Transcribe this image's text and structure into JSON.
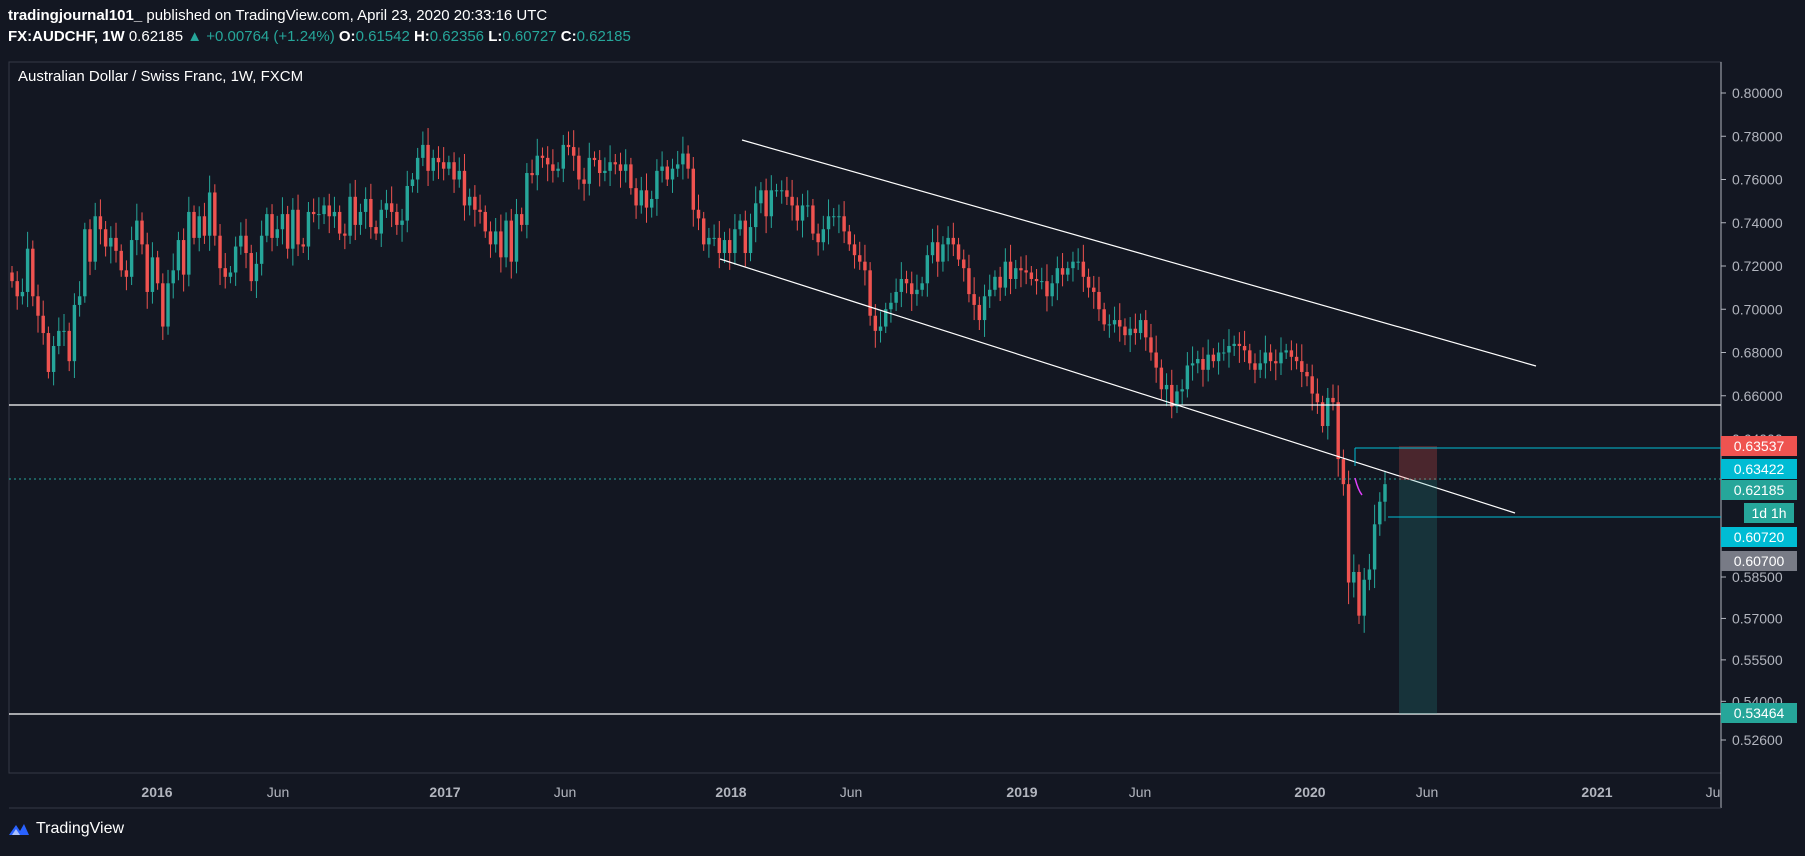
{
  "header": {
    "author": "tradingjournal101_",
    "published": "published on TradingView.com, April 23, 2020 20:33:16 UTC",
    "symbol": "FX:AUDCHF",
    "interval": "1W",
    "last": "0.62185",
    "change_arrow": "▲",
    "change": "+0.00764 (+1.24%)",
    "open_label": "O:",
    "open": "0.61542",
    "high_label": "H:",
    "high": "0.62356",
    "low_label": "L:",
    "low": "0.60727",
    "close_label": "C:",
    "close": "0.62185"
  },
  "footer": {
    "brand": "TradingView"
  },
  "colors": {
    "bg": "#131722",
    "up": "#26a69a",
    "down": "#ef5350",
    "grid_text": "#b2b5be",
    "accent_blue": "#00bcd4"
  },
  "chart_data": {
    "type": "candlestick",
    "title": "Australian Dollar / Swiss Franc, 1W, FXCM",
    "y_ticks": [
      "0.80000",
      "0.78000",
      "0.76000",
      "0.74000",
      "0.72000",
      "0.70000",
      "0.68000",
      "0.66000",
      "0.64000",
      "0.58500",
      "0.57000",
      "0.55500",
      "0.54000",
      "0.52600"
    ],
    "x_ticks": [
      "2016",
      "Jun",
      "2017",
      "Jun",
      "2018",
      "Jun",
      "2019",
      "Jun",
      "2020",
      "Jun",
      "2021",
      "Ju"
    ],
    "price_labels": [
      {
        "value": "0.63537",
        "color": "#ef5350"
      },
      {
        "value": "0.63422",
        "color": "#00bcd4"
      },
      {
        "value": "0.62185",
        "color": "#26a69a"
      },
      {
        "value": "1d 1h",
        "color": "#26a69a"
      },
      {
        "value": "0.60720",
        "color": "#00bcd4"
      },
      {
        "value": "0.60700",
        "color": "#787b86"
      },
      {
        "value": "0.53464",
        "color": "#26a69a"
      }
    ],
    "series": [
      {
        "name": "",
        "close": [
          0.713,
          0.706,
          0.708,
          0.728,
          0.706,
          0.697,
          0.689,
          0.671,
          0.683,
          0.69,
          0.69,
          0.676,
          0.702,
          0.706,
          0.737,
          0.722,
          0.743,
          0.737,
          0.729,
          0.733,
          0.727,
          0.718,
          0.715,
          0.732,
          0.741,
          0.73,
          0.708,
          0.724,
          0.712,
          0.692,
          0.712,
          0.718,
          0.732,
          0.716,
          0.745,
          0.733,
          0.743,
          0.734,
          0.754,
          0.734,
          0.719,
          0.715,
          0.717,
          0.729,
          0.734,
          0.726,
          0.713,
          0.721,
          0.734,
          0.744,
          0.733,
          0.737,
          0.744,
          0.728,
          0.746,
          0.73,
          0.729,
          0.745,
          0.744,
          0.744,
          0.748,
          0.743,
          0.745,
          0.735,
          0.734,
          0.752,
          0.739,
          0.745,
          0.751,
          0.738,
          0.735,
          0.746,
          0.749,
          0.745,
          0.739,
          0.741,
          0.757,
          0.76,
          0.77,
          0.776,
          0.764,
          0.77,
          0.768,
          0.765,
          0.768,
          0.76,
          0.764,
          0.748,
          0.752,
          0.746,
          0.745,
          0.736,
          0.73,
          0.736,
          0.724,
          0.741,
          0.722,
          0.744,
          0.739,
          0.763,
          0.762,
          0.771,
          0.77,
          0.767,
          0.764,
          0.765,
          0.776,
          0.775,
          0.771,
          0.76,
          0.758,
          0.77,
          0.769,
          0.763,
          0.764,
          0.768,
          0.767,
          0.764,
          0.767,
          0.756,
          0.748,
          0.755,
          0.747,
          0.751,
          0.764,
          0.766,
          0.76,
          0.765,
          0.767,
          0.772,
          0.765,
          0.746,
          0.742,
          0.73,
          0.733,
          0.733,
          0.726,
          0.732,
          0.726,
          0.737,
          0.741,
          0.726,
          0.738,
          0.749,
          0.755,
          0.743,
          0.755,
          0.755,
          0.755,
          0.752,
          0.748,
          0.741,
          0.748,
          0.748,
          0.735,
          0.731,
          0.737,
          0.743,
          0.743,
          0.743,
          0.736,
          0.73,
          0.725,
          0.722,
          0.718,
          0.697,
          0.69,
          0.692,
          0.7,
          0.703,
          0.708,
          0.714,
          0.712,
          0.707,
          0.709,
          0.712,
          0.725,
          0.731,
          0.722,
          0.73,
          0.733,
          0.73,
          0.723,
          0.719,
          0.707,
          0.702,
          0.695,
          0.706,
          0.709,
          0.715,
          0.71,
          0.722,
          0.714,
          0.719,
          0.718,
          0.717,
          0.714,
          0.713,
          0.713,
          0.706,
          0.712,
          0.719,
          0.716,
          0.719,
          0.722,
          0.722,
          0.715,
          0.71,
          0.708,
          0.7,
          0.693,
          0.693,
          0.695,
          0.692,
          0.688,
          0.691,
          0.689,
          0.695,
          0.687,
          0.68,
          0.673,
          0.663,
          0.665,
          0.655,
          0.662,
          0.663,
          0.674,
          0.675,
          0.677,
          0.672,
          0.679,
          0.676,
          0.68,
          0.68,
          0.683,
          0.684,
          0.683,
          0.681,
          0.675,
          0.672,
          0.675,
          0.68,
          0.676,
          0.675,
          0.68,
          0.681,
          0.678,
          0.676,
          0.671,
          0.669,
          0.661,
          0.657,
          0.646,
          0.659,
          0.657,
          0.632,
          0.622,
          0.583,
          0.587,
          0.571,
          0.584,
          0.588,
          0.606,
          0.615,
          0.622
        ]
      }
    ],
    "ylim": [
      0.525,
      0.805
    ]
  }
}
